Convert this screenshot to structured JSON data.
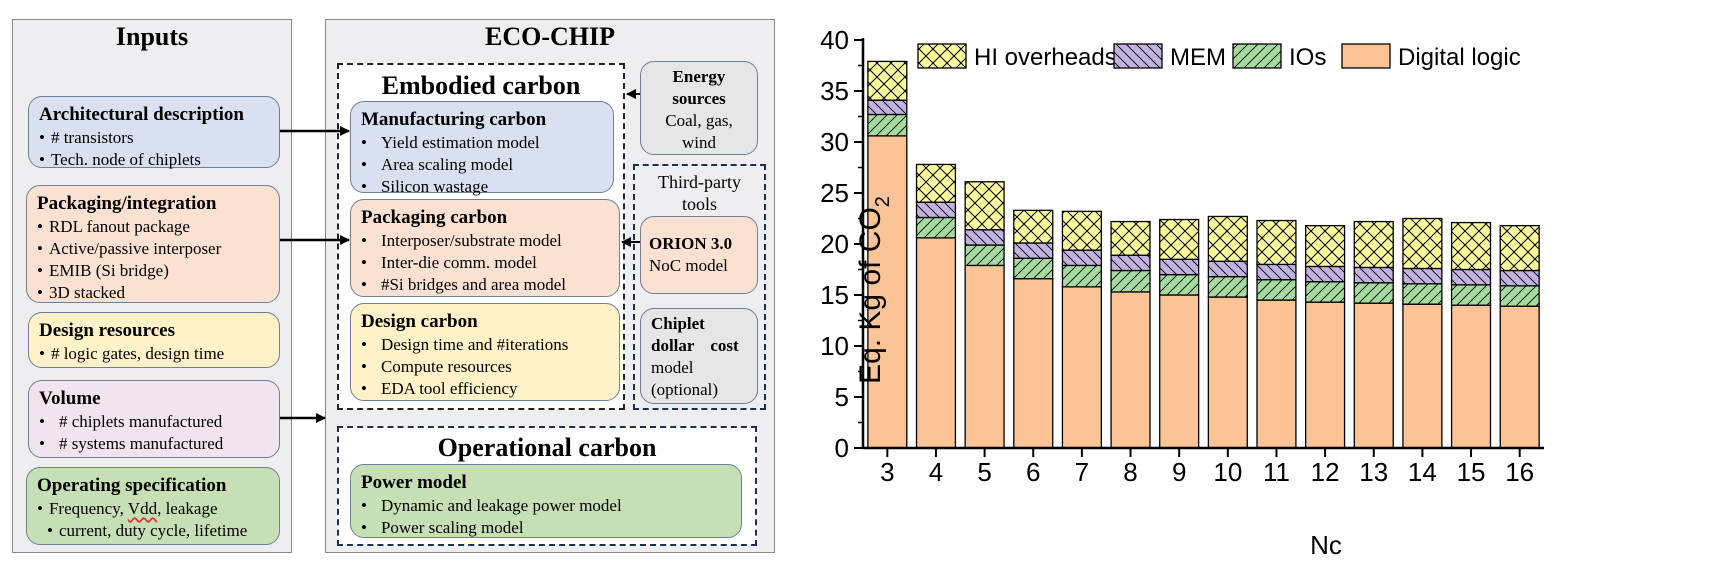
{
  "inputs": {
    "title": "Inputs",
    "cards": [
      {
        "title": "Architectural description",
        "items": [
          "# transistors",
          "Tech. node of chiplets"
        ]
      },
      {
        "title": "Packaging/integration",
        "items": [
          "RDL fanout package",
          "Active/passive interposer",
          "EMIB (Si bridge)",
          "3D stacked"
        ]
      },
      {
        "title": "Design resources",
        "items": [
          "# logic gates, design time"
        ]
      },
      {
        "title": "Volume",
        "items": [
          "# chiplets manufactured",
          "# systems manufactured"
        ]
      },
      {
        "title": "Operating specification",
        "items": [
          "Frequency, ",
          "Vdd",
          ", leakage",
          "current, duty cycle, lifetime"
        ]
      }
    ]
  },
  "ecochip": {
    "title": "ECO-CHIP",
    "embodied_title": "Embodied carbon",
    "manufacturing": {
      "title": "Manufacturing carbon",
      "items": [
        "Yield estimation model",
        "Area scaling model",
        "Silicon wastage"
      ]
    },
    "packaging": {
      "title": "Packaging carbon",
      "items": [
        "Interposer/substrate model",
        "Inter-die comm. model",
        "#Si bridges and area model"
      ]
    },
    "design": {
      "title": "Design carbon",
      "items": [
        "Design time and #iterations",
        "Compute resources",
        "EDA tool efficiency"
      ]
    },
    "energy": {
      "title": "Energy sources",
      "body": "Coal, gas, wind"
    },
    "third_party_title": "Third-party tools",
    "orion": {
      "title": "ORION 3.0",
      "body": "NoC model"
    },
    "chiplet_cost": {
      "title_line1": "Chiplet",
      "title_line2": "dollar cost",
      "body_line1": "model",
      "body_line2": "(optional)"
    },
    "operational_title": "Operational carbon",
    "power": {
      "title": "Power model",
      "items": [
        "Dynamic and leakage power model",
        "Power scaling model"
      ]
    }
  },
  "chart_data": {
    "type": "bar",
    "stacked": true,
    "title": "",
    "xlabel": "Nc",
    "ylabel_main": "Eq. Kg of CO",
    "ylabel_sub": "2",
    "ylim": [
      0,
      40
    ],
    "yticks": [
      0,
      5,
      10,
      15,
      20,
      25,
      30,
      35,
      40
    ],
    "categories": [
      "3",
      "4",
      "5",
      "6",
      "7",
      "8",
      "9",
      "10",
      "11",
      "12",
      "13",
      "14",
      "15",
      "16"
    ],
    "legend_position": "top",
    "series": [
      {
        "name": "Digital logic",
        "color": "#fac496",
        "values": [
          30.6,
          20.6,
          17.9,
          16.6,
          15.8,
          15.3,
          15.0,
          14.8,
          14.5,
          14.3,
          14.2,
          14.1,
          14.0,
          13.9
        ]
      },
      {
        "name": "IOs",
        "color": "#a6dba0",
        "values": [
          2.1,
          2.0,
          2.0,
          2.0,
          2.1,
          2.1,
          2.0,
          2.0,
          2.0,
          2.0,
          2.0,
          2.0,
          2.0,
          2.0
        ]
      },
      {
        "name": "MEM",
        "color": "#c2b2df",
        "values": [
          1.4,
          1.5,
          1.5,
          1.5,
          1.5,
          1.5,
          1.5,
          1.5,
          1.5,
          1.5,
          1.5,
          1.5,
          1.5,
          1.5
        ]
      },
      {
        "name": "HI overheads",
        "color": "#fafa9a",
        "values": [
          3.8,
          3.7,
          4.7,
          3.2,
          3.8,
          3.3,
          3.9,
          4.4,
          4.3,
          4.0,
          4.5,
          4.9,
          4.6,
          4.4
        ]
      }
    ],
    "legend_order": [
      "HI overheads",
      "MEM",
      "IOs",
      "Digital logic"
    ]
  }
}
